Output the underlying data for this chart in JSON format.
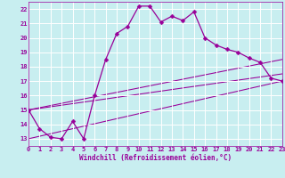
{
  "title": "",
  "xlabel": "Windchill (Refroidissement éolien,°C)",
  "ylabel": "",
  "bg_color": "#c8eef0",
  "grid_color": "#ffffff",
  "line_color": "#990099",
  "xmin": 0,
  "xmax": 23,
  "ymin": 12.5,
  "ymax": 22.5,
  "yticks": [
    13,
    14,
    15,
    16,
    17,
    18,
    19,
    20,
    21,
    22
  ],
  "xticks": [
    0,
    1,
    2,
    3,
    4,
    5,
    6,
    7,
    8,
    9,
    10,
    11,
    12,
    13,
    14,
    15,
    16,
    17,
    18,
    19,
    20,
    21,
    22,
    23
  ],
  "main_line": {
    "x": [
      0,
      1,
      2,
      3,
      4,
      5,
      6,
      7,
      8,
      9,
      10,
      11,
      12,
      13,
      14,
      15,
      16,
      17,
      18,
      19,
      20,
      21,
      22,
      23
    ],
    "y": [
      15.0,
      13.7,
      13.1,
      13.0,
      14.2,
      13.0,
      16.0,
      18.5,
      20.3,
      20.8,
      22.2,
      22.2,
      21.1,
      21.5,
      21.2,
      21.8,
      20.0,
      19.5,
      19.2,
      19.0,
      18.6,
      18.3,
      17.2,
      17.0
    ]
  },
  "fan_lines": [
    {
      "x": [
        0,
        23
      ],
      "y": [
        15.0,
        18.5
      ]
    },
    {
      "x": [
        0,
        23
      ],
      "y": [
        15.0,
        17.5
      ]
    },
    {
      "x": [
        0,
        23
      ],
      "y": [
        13.0,
        17.0
      ]
    }
  ],
  "markersize": 2.5,
  "linewidth": 0.9,
  "tick_fontsize": 5.0,
  "xlabel_fontsize": 5.5
}
